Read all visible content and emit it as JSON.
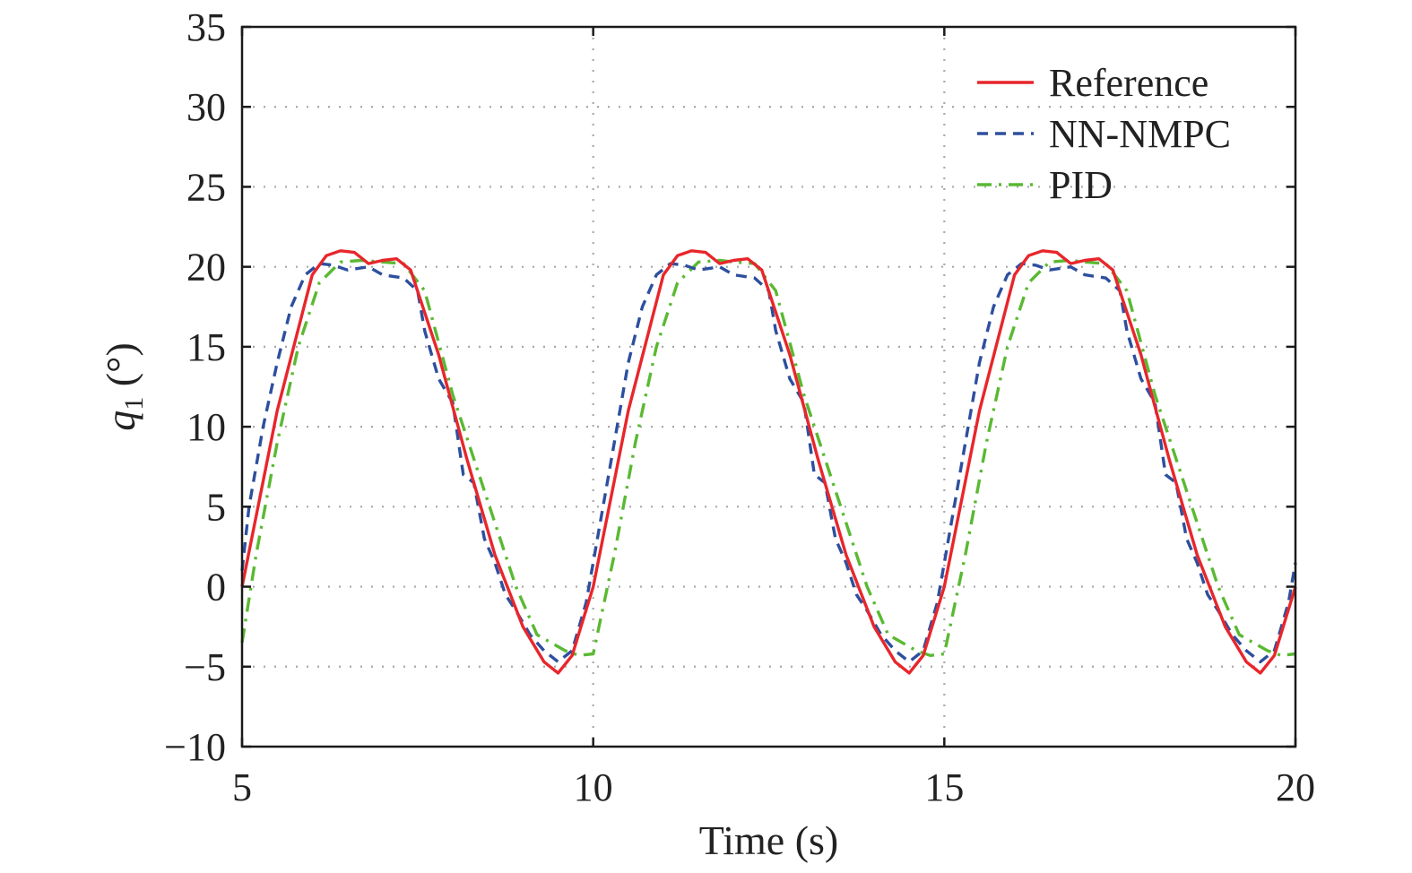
{
  "chart_data": {
    "type": "line",
    "xlabel": "Time (s)",
    "ylabel_var": "q",
    "ylabel_sub": "1",
    "ylabel_unit": " (°)",
    "xlim": [
      5,
      20
    ],
    "ylim": [
      -10,
      35
    ],
    "xticks": [
      5,
      10,
      15,
      20
    ],
    "yticks": [
      -10,
      -5,
      0,
      5,
      10,
      15,
      20,
      25,
      30,
      35
    ],
    "xtick_labels": [
      "5",
      "10",
      "15",
      "20"
    ],
    "ytick_labels": [
      "−10",
      "−5",
      "0",
      "5",
      "10",
      "15",
      "20",
      "25",
      "30",
      "35"
    ],
    "grid": true,
    "legend_position": "top-right",
    "series": [
      {
        "name": "Reference",
        "color": "#e8262b",
        "style": "solid",
        "x": [
          5.0,
          5.5,
          6.0,
          6.2,
          6.4,
          6.6,
          6.8,
          7.0,
          7.2,
          7.4,
          7.8,
          8.2,
          8.6,
          9.0,
          9.3,
          9.5,
          9.7,
          10.0,
          10.5,
          11.0,
          11.2,
          11.4,
          11.6,
          11.8,
          12.0,
          12.2,
          12.4,
          12.8,
          13.2,
          13.6,
          14.0,
          14.3,
          14.5,
          14.7,
          15.0,
          15.5,
          16.0,
          16.2,
          16.4,
          16.6,
          16.8,
          17.0,
          17.2,
          17.4,
          17.8,
          18.2,
          18.6,
          19.0,
          19.3,
          19.5,
          19.7,
          20.0
        ],
        "values": [
          0.0,
          11.0,
          19.5,
          20.7,
          21.0,
          20.9,
          20.2,
          20.4,
          20.5,
          19.8,
          14.5,
          8.0,
          2.0,
          -2.5,
          -4.7,
          -5.4,
          -4.3,
          0.0,
          11.0,
          19.5,
          20.7,
          21.0,
          20.9,
          20.2,
          20.4,
          20.5,
          19.8,
          14.5,
          8.0,
          2.0,
          -2.5,
          -4.7,
          -5.4,
          -4.3,
          0.0,
          11.0,
          19.5,
          20.7,
          21.0,
          20.9,
          20.2,
          20.4,
          20.5,
          19.8,
          14.5,
          8.0,
          2.0,
          -2.5,
          -4.7,
          -5.4,
          -4.3,
          0.0
        ]
      },
      {
        "name": "NN-NMPC",
        "color": "#2d4f9e",
        "style": "dashed",
        "x": [
          5.0,
          5.1,
          5.3,
          5.5,
          5.7,
          5.9,
          6.1,
          6.3,
          6.5,
          6.8,
          7.0,
          7.3,
          7.5,
          7.6,
          7.8,
          8.0,
          8.15,
          8.3,
          8.45,
          8.6,
          8.75,
          8.9,
          9.1,
          9.3,
          9.5,
          9.7,
          9.9,
          10.1,
          10.3,
          10.5,
          10.7,
          10.9,
          11.1,
          11.3,
          11.5,
          11.8,
          12.0,
          12.3,
          12.5,
          12.6,
          12.8,
          13.0,
          13.15,
          13.3,
          13.45,
          13.6,
          13.75,
          13.9,
          14.1,
          14.3,
          14.5,
          14.7,
          14.9,
          15.1,
          15.3,
          15.5,
          15.7,
          15.9,
          16.1,
          16.3,
          16.5,
          16.8,
          17.0,
          17.3,
          17.5,
          17.6,
          17.8,
          18.0,
          18.15,
          18.3,
          18.45,
          18.6,
          18.75,
          18.9,
          19.1,
          19.3,
          19.5,
          19.7,
          19.9,
          20.0
        ],
        "values": [
          1.0,
          5.0,
          10.0,
          14.0,
          17.5,
          19.5,
          20.2,
          20.1,
          19.8,
          20.0,
          19.5,
          19.3,
          18.5,
          16.0,
          13.0,
          11.5,
          7.0,
          6.5,
          3.0,
          1.5,
          -0.5,
          -1.5,
          -3.0,
          -4.0,
          -4.7,
          -4.0,
          -1.0,
          4.0,
          9.0,
          14.0,
          17.5,
          19.5,
          20.2,
          20.1,
          19.8,
          20.0,
          19.5,
          19.3,
          18.5,
          16.0,
          13.0,
          11.5,
          7.0,
          6.5,
          3.0,
          1.5,
          -0.5,
          -1.5,
          -3.0,
          -4.0,
          -4.7,
          -4.0,
          -1.0,
          4.0,
          9.0,
          14.0,
          17.5,
          19.5,
          20.2,
          20.1,
          19.8,
          20.0,
          19.5,
          19.3,
          18.5,
          16.0,
          13.0,
          11.5,
          7.0,
          6.5,
          3.0,
          1.5,
          -0.5,
          -1.5,
          -3.0,
          -4.0,
          -4.7,
          -4.0,
          -1.0,
          1.5
        ]
      },
      {
        "name": "PID",
        "color": "#5ab932",
        "style": "dashdot",
        "x": [
          5.0,
          5.2,
          5.5,
          5.8,
          6.1,
          6.4,
          6.7,
          7.0,
          7.3,
          7.6,
          8.0,
          8.3,
          8.6,
          8.9,
          9.2,
          9.4,
          9.6,
          9.8,
          10.0,
          10.3,
          10.6,
          10.9,
          11.2,
          11.5,
          11.8,
          12.0,
          12.3,
          12.6,
          13.0,
          13.3,
          13.6,
          13.9,
          14.2,
          14.4,
          14.6,
          14.8,
          15.0,
          15.3,
          15.6,
          15.9,
          16.2,
          16.5,
          16.8,
          17.0,
          17.3,
          17.6,
          18.0,
          18.3,
          18.6,
          18.9,
          19.2,
          19.4,
          19.6,
          19.8,
          20.0
        ],
        "values": [
          -3.5,
          2.0,
          9.0,
          15.0,
          19.0,
          20.3,
          20.4,
          20.3,
          20.2,
          18.5,
          12.0,
          8.0,
          4.0,
          0.0,
          -3.0,
          -3.5,
          -4.0,
          -4.3,
          -4.2,
          2.0,
          9.0,
          15.0,
          19.0,
          20.3,
          20.4,
          20.3,
          20.2,
          18.5,
          12.0,
          8.0,
          4.0,
          0.0,
          -3.0,
          -3.5,
          -4.0,
          -4.3,
          -4.2,
          2.0,
          9.0,
          15.0,
          19.0,
          20.3,
          20.4,
          20.3,
          20.2,
          18.5,
          12.0,
          8.0,
          4.0,
          0.0,
          -3.0,
          -3.5,
          -4.0,
          -4.3,
          -4.2
        ]
      }
    ]
  }
}
